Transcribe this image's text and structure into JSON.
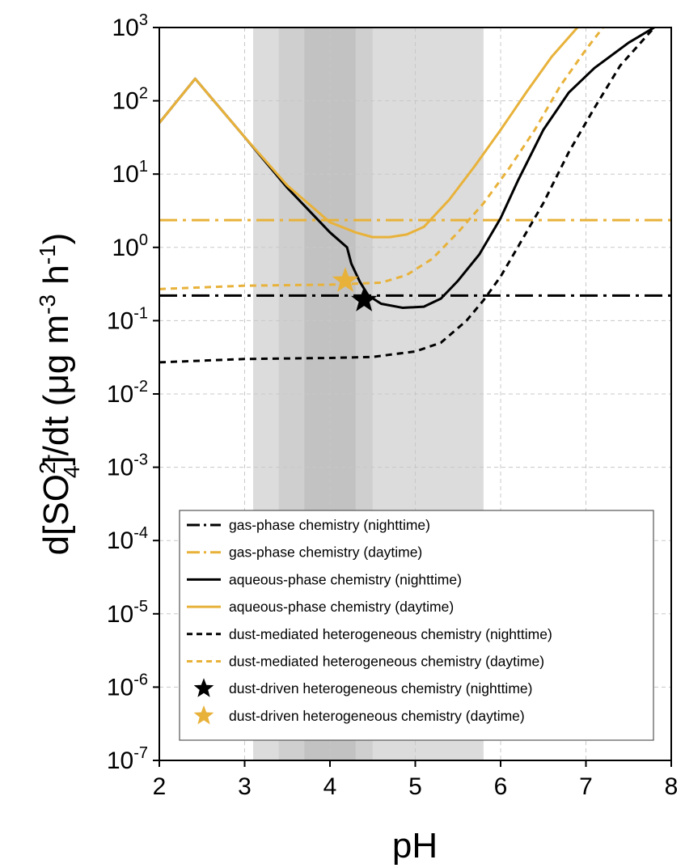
{
  "chart_data": {
    "type": "line",
    "xlabel": "pH",
    "ylabel_parts": {
      "prefix": "d[SO",
      "sup": "2-",
      "sub": "4",
      "mid": "]/dt (μg m",
      "sup2": "-3",
      "mid2": " h",
      "sup3": "-1",
      "suffix": ")"
    },
    "xlim": [
      2,
      8
    ],
    "ylim_log10": [
      -7,
      3
    ],
    "y_scale": "log",
    "x_ticks": [
      "2",
      "3",
      "4",
      "5",
      "6",
      "7",
      "8"
    ],
    "y_ticks": [
      {
        "base": "10",
        "exp": "-7"
      },
      {
        "base": "10",
        "exp": "-6"
      },
      {
        "base": "10",
        "exp": "-5"
      },
      {
        "base": "10",
        "exp": "-4"
      },
      {
        "base": "10",
        "exp": "-3"
      },
      {
        "base": "10",
        "exp": "-2"
      },
      {
        "base": "10",
        "exp": "-1"
      },
      {
        "base": "10",
        "exp": "0"
      },
      {
        "base": "10",
        "exp": "1"
      },
      {
        "base": "10",
        "exp": "2"
      },
      {
        "base": "10",
        "exp": "3"
      }
    ],
    "grid": true,
    "legend_position": "lower-right",
    "shaded_ph_ranges": [
      {
        "from": 3.1,
        "to": 5.8,
        "color": "#dcdcdc"
      },
      {
        "from": 3.4,
        "to": 4.5,
        "color": "#cfcfcf"
      },
      {
        "from": 3.7,
        "to": 4.3,
        "color": "#c2c2c2"
      }
    ],
    "series": [
      {
        "name": "gas-phase chemistry (nighttime)",
        "color": "#000000",
        "style": "dashdot",
        "width": 3,
        "points": [
          [
            2,
            0.22
          ],
          [
            8,
            0.22
          ]
        ]
      },
      {
        "name": "gas-phase chemistry (daytime)",
        "color": "#E8B23A",
        "style": "dashdot",
        "width": 3,
        "points": [
          [
            2,
            2.35
          ],
          [
            8,
            2.35
          ]
        ]
      },
      {
        "name": "aqueous-phase chemistry (nighttime)",
        "color": "#000000",
        "style": "solid",
        "width": 3,
        "points": [
          [
            2,
            50
          ],
          [
            2.42,
            200
          ],
          [
            3.0,
            32
          ],
          [
            3.5,
            6.5
          ],
          [
            4.0,
            1.6
          ],
          [
            4.2,
            1.0
          ],
          [
            4.25,
            0.6
          ],
          [
            4.35,
            0.34
          ],
          [
            4.45,
            0.22
          ],
          [
            4.6,
            0.17
          ],
          [
            4.85,
            0.15
          ],
          [
            5.1,
            0.155
          ],
          [
            5.3,
            0.2
          ],
          [
            5.5,
            0.35
          ],
          [
            5.75,
            0.8
          ],
          [
            6.0,
            2.5
          ],
          [
            6.2,
            8
          ],
          [
            6.5,
            40
          ],
          [
            6.8,
            130
          ],
          [
            7.1,
            280
          ],
          [
            7.5,
            620
          ],
          [
            7.8,
            1000
          ]
        ]
      },
      {
        "name": "aqueous-phase chemistry (daytime)",
        "color": "#E8B23A",
        "style": "solid",
        "width": 3,
        "points": [
          [
            2,
            50
          ],
          [
            2.42,
            200
          ],
          [
            3.0,
            32
          ],
          [
            3.5,
            7
          ],
          [
            4.0,
            2.2
          ],
          [
            4.3,
            1.6
          ],
          [
            4.5,
            1.38
          ],
          [
            4.7,
            1.38
          ],
          [
            4.9,
            1.5
          ],
          [
            5.1,
            1.9
          ],
          [
            5.4,
            4.5
          ],
          [
            5.7,
            13
          ],
          [
            6.0,
            40
          ],
          [
            6.3,
            130
          ],
          [
            6.6,
            400
          ],
          [
            6.9,
            1000
          ]
        ]
      },
      {
        "name": "dust-mediated heterogeneous chemistry (nighttime)",
        "color": "#000000",
        "style": "dashed",
        "width": 3,
        "points": [
          [
            2,
            0.027
          ],
          [
            3.0,
            0.03
          ],
          [
            4.0,
            0.031
          ],
          [
            4.5,
            0.032
          ],
          [
            5.0,
            0.038
          ],
          [
            5.3,
            0.05
          ],
          [
            5.6,
            0.1
          ],
          [
            5.8,
            0.19
          ],
          [
            6.0,
            0.4
          ],
          [
            6.2,
            1.0
          ],
          [
            6.5,
            4
          ],
          [
            6.8,
            20
          ],
          [
            7.1,
            80
          ],
          [
            7.4,
            300
          ],
          [
            7.8,
            1000
          ]
        ]
      },
      {
        "name": "dust-mediated heterogeneous chemistry (daytime)",
        "color": "#E8B23A",
        "style": "dashed",
        "width": 3,
        "points": [
          [
            2,
            0.27
          ],
          [
            3.0,
            0.3
          ],
          [
            4.0,
            0.31
          ],
          [
            4.3,
            0.32
          ],
          [
            4.6,
            0.33
          ],
          [
            4.9,
            0.42
          ],
          [
            5.2,
            0.7
          ],
          [
            5.5,
            1.6
          ],
          [
            5.8,
            4
          ],
          [
            6.1,
            12
          ],
          [
            6.4,
            40
          ],
          [
            6.7,
            160
          ],
          [
            7.0,
            500
          ],
          [
            7.2,
            1000
          ]
        ]
      },
      {
        "name": "dust-driven heterogeneous chemistry (nighttime)",
        "color": "#000000",
        "style": "star",
        "points": [
          [
            4.4,
            0.19
          ]
        ]
      },
      {
        "name": "dust-driven heterogeneous chemistry (daytime)",
        "color": "#E8B23A",
        "style": "star",
        "points": [
          [
            4.18,
            0.35
          ]
        ]
      }
    ]
  }
}
